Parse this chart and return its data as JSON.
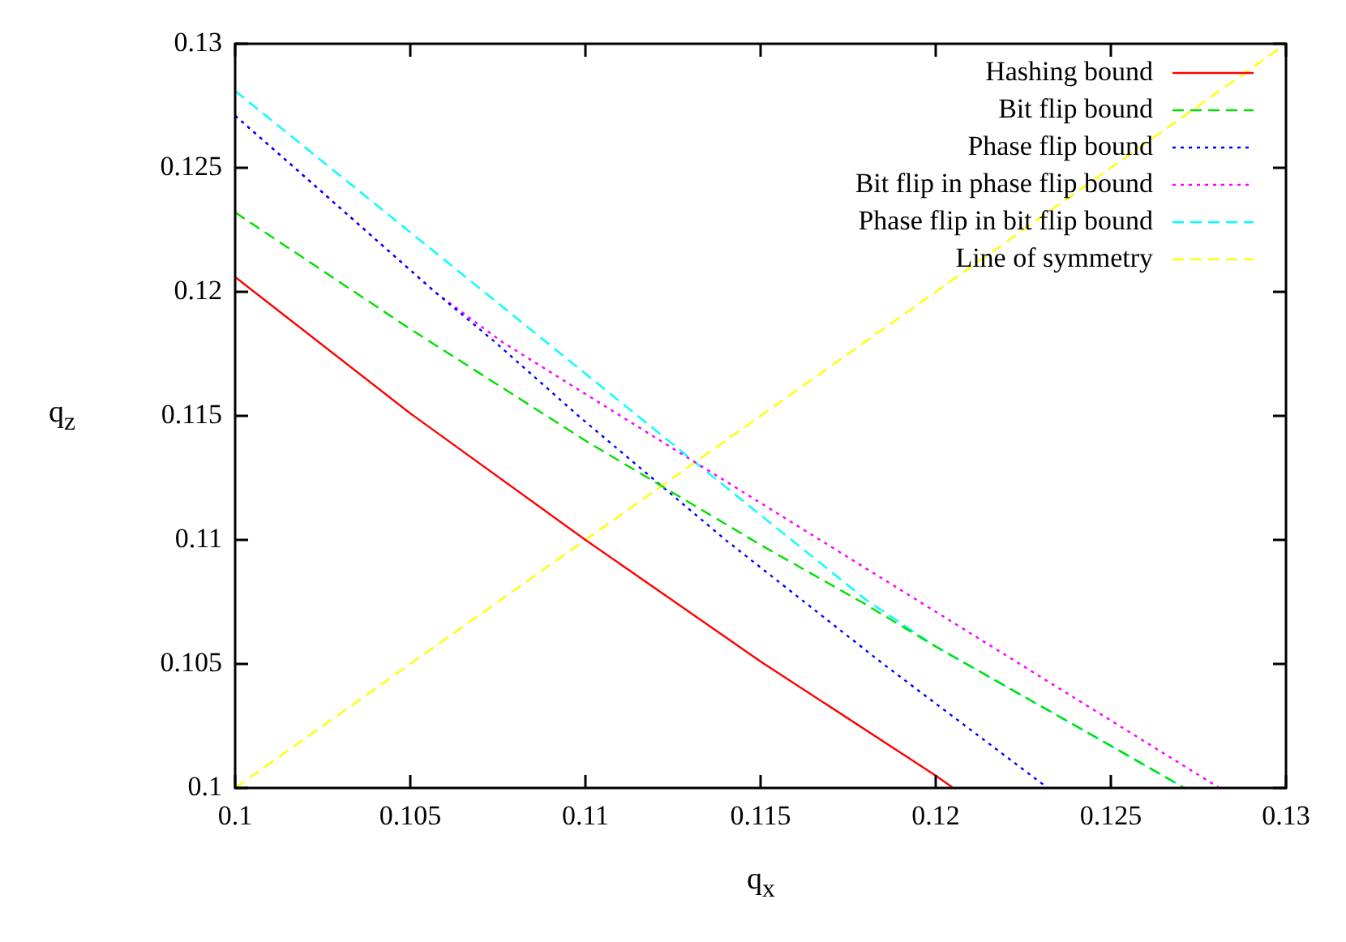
{
  "chart_data": {
    "type": "line",
    "xlabel": "q$_{x}$",
    "ylabel": "q$_{z}$",
    "xlim": [
      0.1,
      0.13
    ],
    "ylim": [
      0.1,
      0.13
    ],
    "xticks": [
      0.1,
      0.105,
      0.11,
      0.115,
      0.12,
      0.125,
      0.13
    ],
    "yticks": [
      0.1,
      0.105,
      0.11,
      0.115,
      0.12,
      0.125,
      0.13
    ],
    "grid": false,
    "legend": "top right",
    "marker": "none",
    "series": [
      {
        "name": "Hashing bound",
        "color": "#ff0000",
        "line_style": "solid",
        "x": [
          0.1,
          0.105,
          0.11,
          0.115,
          0.12,
          0.1205
        ],
        "values": [
          0.1206,
          0.1151,
          0.11,
          0.1051,
          0.1005,
          0.1
        ]
      },
      {
        "name": "Bit flip bound",
        "color": "#00e000",
        "line_style": "dashed",
        "x": [
          0.1,
          0.105,
          0.11,
          0.115,
          0.118,
          0.12,
          0.125,
          0.1271
        ],
        "values": [
          0.1232,
          0.1185,
          0.114,
          0.1098,
          0.1074,
          0.1057,
          0.1017,
          0.1
        ]
      },
      {
        "name": "Phase flip bound",
        "color": "#0000ff",
        "line_style": "dotted",
        "x": [
          0.1,
          0.1017,
          0.1057,
          0.1074,
          0.1098,
          0.114,
          0.1185,
          0.1232
        ],
        "values": [
          0.1271,
          0.125,
          0.12,
          0.118,
          0.115,
          0.11,
          0.105,
          0.1
        ]
      },
      {
        "name": "Bit flip in phase flip bound",
        "color": "#ff00ff",
        "line_style": "dotted",
        "x": [
          0.1,
          0.1017,
          0.1057,
          0.1076,
          0.111,
          0.1167,
          0.1224,
          0.1281
        ],
        "values": [
          0.1271,
          0.125,
          0.12,
          0.118,
          0.115,
          0.11,
          0.105,
          0.1
        ]
      },
      {
        "name": "Phase flip in bit flip bound",
        "color": "#00ffff",
        "line_style": "dashed",
        "x": [
          0.1,
          0.105,
          0.11,
          0.115,
          0.118,
          0.12,
          0.125,
          0.1271
        ],
        "values": [
          0.1281,
          0.1224,
          0.1167,
          0.111,
          0.1076,
          0.1057,
          0.1017,
          0.1
        ]
      },
      {
        "name": "Line of symmetry",
        "color": "#ffff00",
        "line_style": "dashed",
        "x": [
          0.1,
          0.13
        ],
        "values": [
          0.1,
          0.13
        ]
      }
    ]
  }
}
